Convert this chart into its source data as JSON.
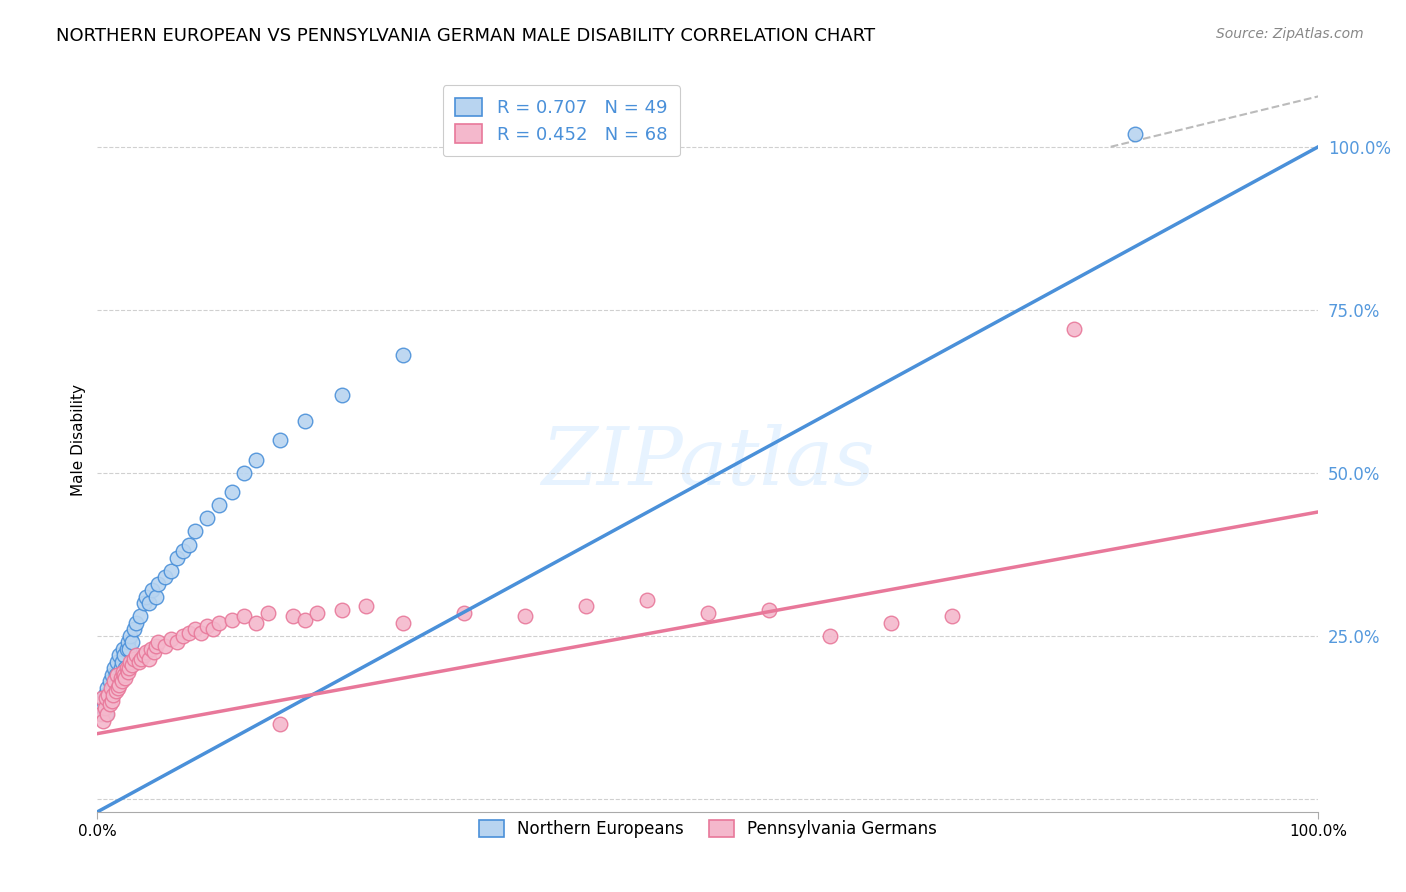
{
  "title": "NORTHERN EUROPEAN VS PENNSYLVANIA GERMAN MALE DISABILITY CORRELATION CHART",
  "source": "Source: ZipAtlas.com",
  "ylabel": "Male Disability",
  "watermark": "ZIPatlas",
  "blue_R": 0.707,
  "blue_N": 49,
  "pink_R": 0.452,
  "pink_N": 68,
  "blue_color": "#b8d4f0",
  "blue_line_color": "#4a90d9",
  "pink_color": "#f4b8cc",
  "pink_line_color": "#e8789a",
  "grid_color": "#d0d0d0",
  "ytick_color": "#5599dd",
  "blue_scatter": [
    [
      0.005,
      0.14
    ],
    [
      0.006,
      0.16
    ],
    [
      0.007,
      0.13
    ],
    [
      0.008,
      0.17
    ],
    [
      0.009,
      0.15
    ],
    [
      0.01,
      0.18
    ],
    [
      0.011,
      0.16
    ],
    [
      0.012,
      0.19
    ],
    [
      0.013,
      0.17
    ],
    [
      0.014,
      0.2
    ],
    [
      0.015,
      0.19
    ],
    [
      0.016,
      0.21
    ],
    [
      0.017,
      0.18
    ],
    [
      0.018,
      0.22
    ],
    [
      0.019,
      0.2
    ],
    [
      0.02,
      0.21
    ],
    [
      0.021,
      0.23
    ],
    [
      0.022,
      0.22
    ],
    [
      0.023,
      0.2
    ],
    [
      0.024,
      0.23
    ],
    [
      0.025,
      0.24
    ],
    [
      0.026,
      0.23
    ],
    [
      0.027,
      0.25
    ],
    [
      0.028,
      0.24
    ],
    [
      0.03,
      0.26
    ],
    [
      0.032,
      0.27
    ],
    [
      0.035,
      0.28
    ],
    [
      0.038,
      0.3
    ],
    [
      0.04,
      0.31
    ],
    [
      0.042,
      0.3
    ],
    [
      0.045,
      0.32
    ],
    [
      0.048,
      0.31
    ],
    [
      0.05,
      0.33
    ],
    [
      0.055,
      0.34
    ],
    [
      0.06,
      0.35
    ],
    [
      0.065,
      0.37
    ],
    [
      0.07,
      0.38
    ],
    [
      0.075,
      0.39
    ],
    [
      0.08,
      0.41
    ],
    [
      0.09,
      0.43
    ],
    [
      0.1,
      0.45
    ],
    [
      0.11,
      0.47
    ],
    [
      0.12,
      0.5
    ],
    [
      0.13,
      0.52
    ],
    [
      0.15,
      0.55
    ],
    [
      0.17,
      0.58
    ],
    [
      0.2,
      0.62
    ],
    [
      0.25,
      0.68
    ],
    [
      0.85,
      1.02
    ]
  ],
  "pink_scatter": [
    [
      0.003,
      0.13
    ],
    [
      0.004,
      0.155
    ],
    [
      0.005,
      0.12
    ],
    [
      0.006,
      0.14
    ],
    [
      0.007,
      0.155
    ],
    [
      0.008,
      0.13
    ],
    [
      0.009,
      0.16
    ],
    [
      0.01,
      0.145
    ],
    [
      0.011,
      0.17
    ],
    [
      0.012,
      0.15
    ],
    [
      0.013,
      0.16
    ],
    [
      0.014,
      0.18
    ],
    [
      0.015,
      0.165
    ],
    [
      0.016,
      0.19
    ],
    [
      0.017,
      0.17
    ],
    [
      0.018,
      0.175
    ],
    [
      0.019,
      0.185
    ],
    [
      0.02,
      0.18
    ],
    [
      0.021,
      0.195
    ],
    [
      0.022,
      0.19
    ],
    [
      0.023,
      0.185
    ],
    [
      0.024,
      0.2
    ],
    [
      0.025,
      0.195
    ],
    [
      0.026,
      0.2
    ],
    [
      0.027,
      0.21
    ],
    [
      0.028,
      0.205
    ],
    [
      0.03,
      0.215
    ],
    [
      0.032,
      0.22
    ],
    [
      0.034,
      0.21
    ],
    [
      0.036,
      0.215
    ],
    [
      0.038,
      0.22
    ],
    [
      0.04,
      0.225
    ],
    [
      0.042,
      0.215
    ],
    [
      0.044,
      0.23
    ],
    [
      0.046,
      0.225
    ],
    [
      0.048,
      0.235
    ],
    [
      0.05,
      0.24
    ],
    [
      0.055,
      0.235
    ],
    [
      0.06,
      0.245
    ],
    [
      0.065,
      0.24
    ],
    [
      0.07,
      0.25
    ],
    [
      0.075,
      0.255
    ],
    [
      0.08,
      0.26
    ],
    [
      0.085,
      0.255
    ],
    [
      0.09,
      0.265
    ],
    [
      0.095,
      0.26
    ],
    [
      0.1,
      0.27
    ],
    [
      0.11,
      0.275
    ],
    [
      0.12,
      0.28
    ],
    [
      0.13,
      0.27
    ],
    [
      0.14,
      0.285
    ],
    [
      0.15,
      0.115
    ],
    [
      0.16,
      0.28
    ],
    [
      0.17,
      0.275
    ],
    [
      0.18,
      0.285
    ],
    [
      0.2,
      0.29
    ],
    [
      0.22,
      0.295
    ],
    [
      0.25,
      0.27
    ],
    [
      0.3,
      0.285
    ],
    [
      0.35,
      0.28
    ],
    [
      0.4,
      0.295
    ],
    [
      0.45,
      0.305
    ],
    [
      0.5,
      0.285
    ],
    [
      0.55,
      0.29
    ],
    [
      0.6,
      0.25
    ],
    [
      0.65,
      0.27
    ],
    [
      0.7,
      0.28
    ],
    [
      0.8,
      0.72
    ]
  ],
  "diagonal_line_color": "#bbbbbb",
  "xlim": [
    0.0,
    1.0
  ],
  "ylim": [
    -0.02,
    1.12
  ],
  "yticks": [
    0.0,
    0.25,
    0.5,
    0.75,
    1.0
  ],
  "ytick_labels": [
    "",
    "25.0%",
    "50.0%",
    "75.0%",
    "100.0%"
  ],
  "xticks": [
    0.0,
    1.0
  ],
  "xtick_labels": [
    "0.0%",
    "100.0%"
  ],
  "title_fontsize": 13,
  "source_fontsize": 10,
  "legend_fontsize": 13,
  "axis_label_fontsize": 11,
  "blue_line_intercept": -0.02,
  "blue_line_slope": 1.02,
  "pink_line_intercept": 0.1,
  "pink_line_slope": 0.34
}
